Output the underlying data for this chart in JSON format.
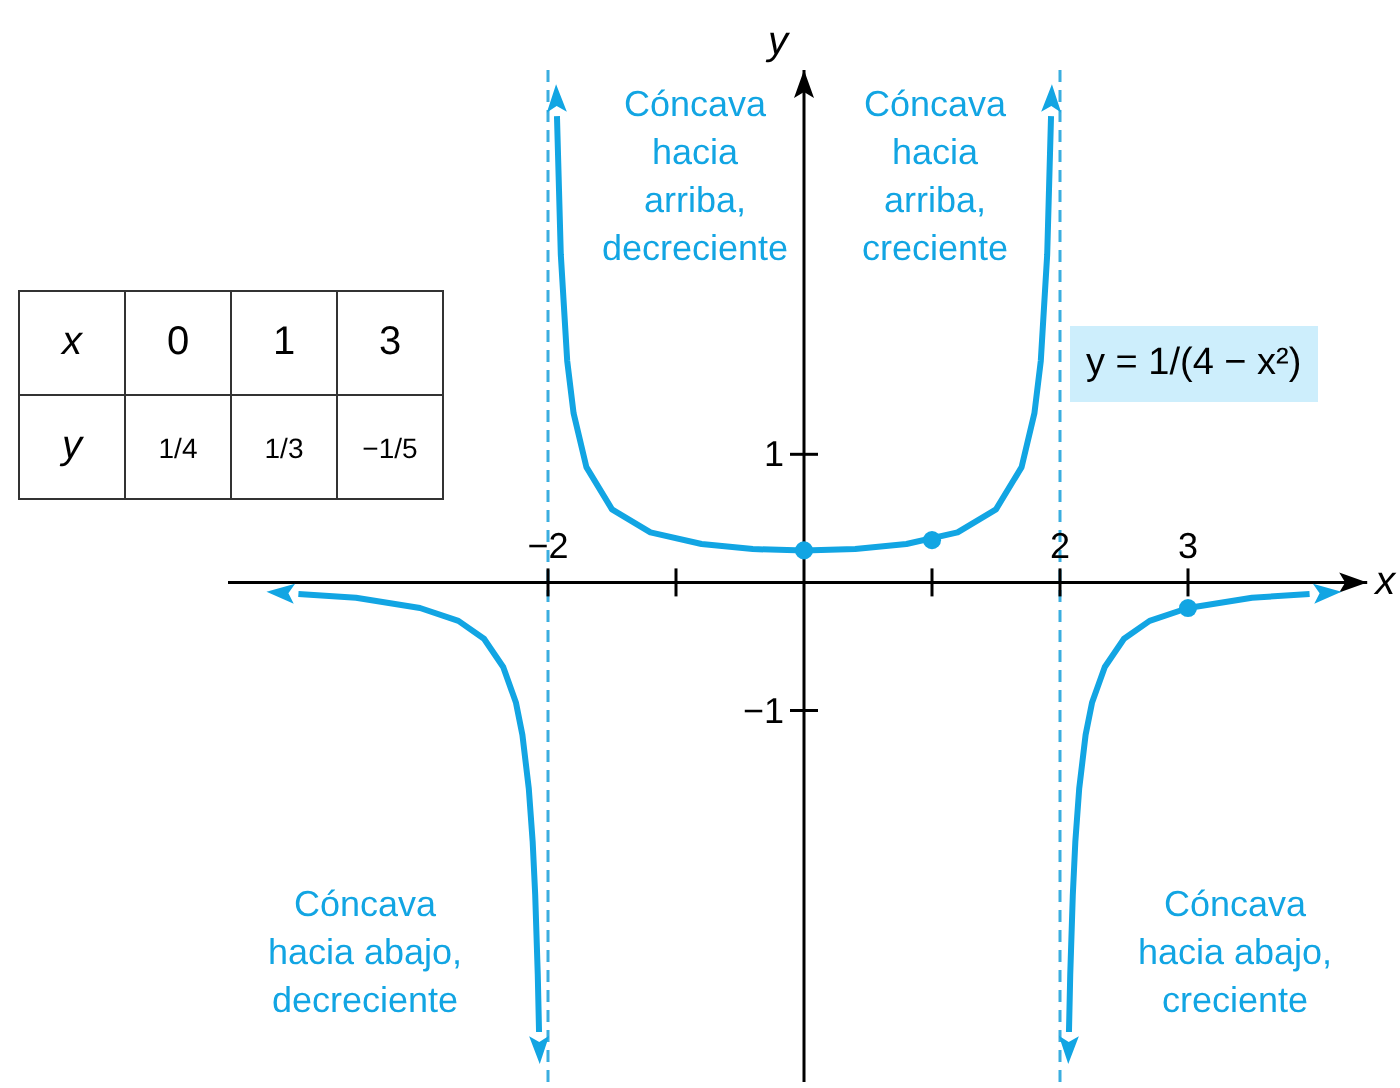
{
  "chart_data": [
    {
      "type": "line",
      "xlabel": "x",
      "ylabel": "y",
      "xlim": [
        -4.5,
        4.4
      ],
      "ylim": [
        -3.9,
        4
      ],
      "xticks": [
        {
          "value": -2,
          "label": "−2"
        },
        {
          "value": -1,
          "label": null
        },
        {
          "value": 1,
          "label": null
        },
        2,
        3
      ],
      "yticks": [
        {
          "value": -1,
          "label": "−1"
        },
        1
      ],
      "series": [
        {
          "type": "line",
          "color": "#12a5e3",
          "marker": "none",
          "x": [
            -3.95,
            -3.5,
            -3,
            -2.7,
            -2.5,
            -2.35,
            -2.25,
            -2.2,
            -2.15,
            -2.12,
            -2.1,
            -2.08,
            -2.07,
            -2,
            -1.93,
            -1.9,
            -1.85,
            -1.8,
            -1.7,
            -1.5,
            -1.2,
            -0.8,
            -0.4,
            0,
            0.4,
            0.8,
            1.2,
            1.5,
            1.7,
            1.8,
            1.85,
            1.9,
            1.93,
            2,
            2.07,
            2.08,
            2.1,
            2.12,
            2.15,
            2.2,
            2.25,
            2.35,
            2.5,
            2.7,
            3,
            3.5,
            3.95
          ],
          "values": [
            -0.09,
            -0.12,
            -0.2,
            -0.3,
            -0.44,
            -0.66,
            -0.94,
            -1.19,
            -1.61,
            -2.02,
            -2.44,
            -3.06,
            -3.51,
            null,
            3.64,
            2.56,
            1.73,
            1.32,
            0.9,
            0.57,
            0.39,
            0.3,
            0.26,
            0.25,
            0.26,
            0.3,
            0.39,
            0.57,
            0.9,
            1.32,
            1.73,
            2.56,
            3.64,
            null,
            -3.51,
            -3.06,
            -2.44,
            -2.02,
            -1.61,
            -1.19,
            -0.94,
            -0.66,
            -0.44,
            -0.3,
            -0.2,
            -0.12,
            -0.09
          ]
        },
        {
          "type": "scatter",
          "color": "#12a5e3",
          "marker": "circle",
          "x": [
            0,
            1,
            3
          ],
          "values": [
            0.25,
            0.33,
            -0.2
          ]
        }
      ],
      "ref_lines": [
        {
          "axis": "x",
          "value": -2,
          "color": "#3aaee0",
          "line_style": "dashed"
        },
        {
          "axis": "x",
          "value": 2,
          "color": "#3aaee0",
          "line_style": "dashed"
        }
      ],
      "annotations": [
        "Cóncava\nhacia\narriba,\ndecreciente",
        "Cóncava\nhacia\narriba,\ncreciente",
        "Cóncava\nhacia abajo,\ndecreciente",
        "Cóncava\nhacia abajo,\ncreciente",
        "y = 1/(4 − x²)"
      ]
    },
    {
      "type": "other",
      "annotations": [
        "x",
        "0",
        "1",
        "3",
        "y",
        "1/4",
        "1/3",
        "−1/5"
      ]
    }
  ]
}
